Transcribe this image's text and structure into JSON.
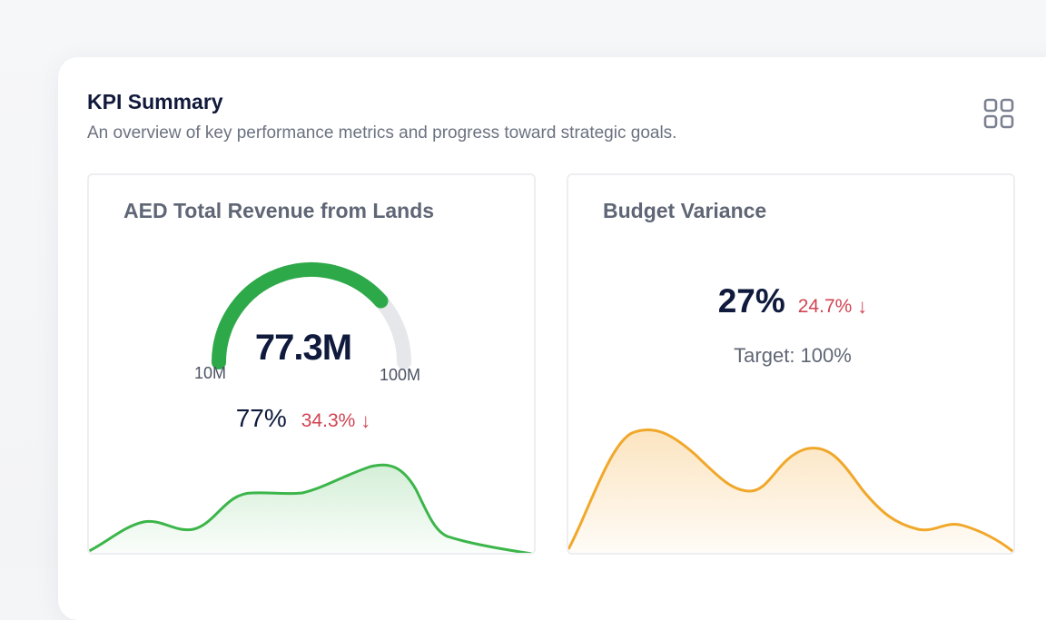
{
  "header": {
    "title": "KPI Summary",
    "subtitle": "An overview of key performance metrics and progress toward strategic goals.",
    "view_toggle_icon": "grid-icon"
  },
  "cards": [
    {
      "title": "AED Total Revenue from Lands",
      "gauge": {
        "value_label": "77.3M",
        "min_label": "10M",
        "max_label": "100M",
        "percent": 77
      },
      "percent_label": "77%",
      "change_label": "34.3%",
      "change_direction": "down",
      "sparkline_color": "#3cb54a"
    },
    {
      "title": "Budget Variance",
      "value_label": "27%",
      "change_label": "24.7%",
      "change_direction": "down",
      "target_label": "Target: 100%",
      "sparkline_color": "#f0a82b"
    }
  ],
  "colors": {
    "positive": "#2ea94a",
    "negative": "#d14452",
    "gauge_track": "#e6e7ea",
    "warning": "#f0a82b"
  }
}
